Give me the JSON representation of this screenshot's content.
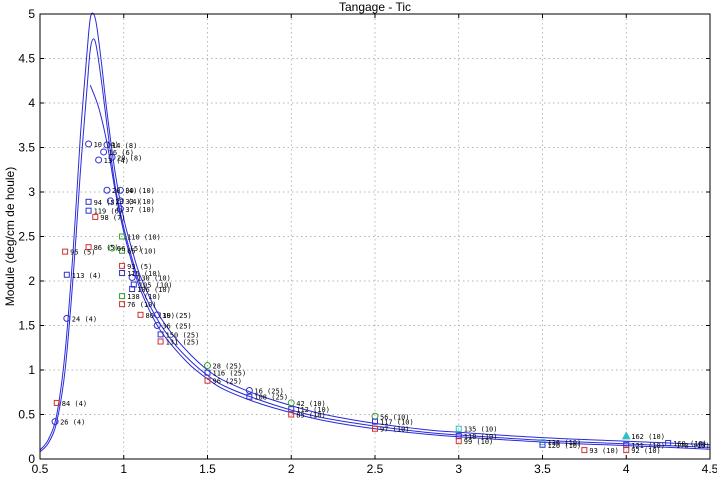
{
  "chart_data": {
    "type": "scatter",
    "title": "Tangage - Tic",
    "xlabel": "",
    "ylabel": "Module (deg/cm de houle)",
    "xlim": [
      0.5,
      4.5
    ],
    "ylim": [
      0,
      5
    ],
    "x_ticks": [
      "0.5",
      "1",
      "1.5",
      "2",
      "2.5",
      "3",
      "3.5",
      "4",
      "4.5"
    ],
    "y_ticks": [
      "0",
      "0.5",
      "1",
      "1.5",
      "2",
      "2.5",
      "3",
      "3.5",
      "4",
      "4.5",
      "5"
    ],
    "grid": true,
    "curves": [
      {
        "name": "",
        "color": "#2a2ad8",
        "x": [
          0.5,
          0.55,
          0.6,
          0.65,
          0.7,
          0.74,
          0.78,
          0.8,
          0.82,
          0.84,
          0.87,
          0.9,
          0.95,
          1.0,
          1.05,
          1.1,
          1.2,
          1.3,
          1.4,
          1.5,
          1.6,
          1.8,
          2.0,
          2.2,
          2.5,
          2.8,
          3.0,
          3.5,
          4.0,
          4.5
        ],
        "y": [
          0.1,
          0.22,
          0.5,
          1.2,
          2.4,
          3.6,
          4.55,
          4.95,
          5.0,
          4.85,
          4.4,
          3.9,
          3.2,
          2.7,
          2.35,
          2.05,
          1.65,
          1.38,
          1.17,
          1.0,
          0.88,
          0.72,
          0.6,
          0.5,
          0.4,
          0.33,
          0.3,
          0.24,
          0.2,
          0.16
        ]
      },
      {
        "name": "",
        "color": "#2a2ad8",
        "x": [
          0.5,
          0.55,
          0.6,
          0.65,
          0.7,
          0.74,
          0.78,
          0.8,
          0.82,
          0.84,
          0.87,
          0.9,
          0.95,
          1.0,
          1.05,
          1.1,
          1.2,
          1.3,
          1.4,
          1.5,
          1.6,
          1.8,
          2.0,
          2.2,
          2.5,
          2.8,
          3.0,
          3.5,
          4.0,
          4.5
        ],
        "y": [
          0.08,
          0.18,
          0.42,
          1.0,
          2.1,
          3.2,
          4.15,
          4.6,
          4.72,
          4.6,
          4.2,
          3.75,
          3.05,
          2.6,
          2.25,
          1.95,
          1.57,
          1.3,
          1.1,
          0.94,
          0.82,
          0.67,
          0.55,
          0.46,
          0.37,
          0.3,
          0.27,
          0.21,
          0.17,
          0.13
        ]
      },
      {
        "name": "",
        "color": "#2a2ad8",
        "x": [
          0.8,
          0.85,
          0.9,
          0.95,
          1.0,
          1.05,
          1.1,
          1.2,
          1.3,
          1.4,
          1.5,
          1.6,
          1.8,
          2.0,
          2.2,
          2.5,
          2.8,
          3.0,
          3.5,
          4.0,
          4.5
        ],
        "y": [
          4.2,
          3.95,
          3.55,
          3.0,
          2.55,
          2.2,
          1.9,
          1.5,
          1.25,
          1.05,
          0.9,
          0.78,
          0.63,
          0.52,
          0.43,
          0.34,
          0.28,
          0.25,
          0.19,
          0.15,
          0.11
        ]
      }
    ],
    "points": [
      {
        "x": 0.59,
        "y": 0.42,
        "m": "o",
        "c": "#3030d0",
        "label": "26 (4)"
      },
      {
        "x": 0.6,
        "y": 0.63,
        "m": "s",
        "c": "#d03030",
        "label": "84 (4)"
      },
      {
        "x": 0.66,
        "y": 1.58,
        "m": "o",
        "c": "#3030d0",
        "label": "24 (4)"
      },
      {
        "x": 0.66,
        "y": 2.07,
        "m": "s",
        "c": "#3030d0",
        "label": "113 (4)"
      },
      {
        "x": 0.65,
        "y": 2.33,
        "m": "s",
        "c": "#d03030",
        "label": "95 (5)"
      },
      {
        "x": 0.79,
        "y": 2.38,
        "m": "s",
        "c": "#d03030",
        "label": "86 (5)"
      },
      {
        "x": 0.79,
        "y": 2.79,
        "m": "s",
        "c": "#3030d0",
        "label": "119 (6)"
      },
      {
        "x": 0.79,
        "y": 2.89,
        "m": "s",
        "c": "#3030d0",
        "label": "94 (5)"
      },
      {
        "x": 0.79,
        "y": 3.54,
        "m": "o",
        "c": "#3030d0",
        "label": "10 (4)"
      },
      {
        "x": 0.83,
        "y": 2.72,
        "m": "s",
        "c": "#d03030",
        "label": "98 (7)"
      },
      {
        "x": 0.85,
        "y": 3.36,
        "m": "o",
        "c": "#3030d0",
        "label": "13 (4)"
      },
      {
        "x": 0.88,
        "y": 3.45,
        "m": "o",
        "c": "#3030d0",
        "label": "16 (6)"
      },
      {
        "x": 0.9,
        "y": 3.53,
        "m": "o",
        "c": "#3030d0",
        "label": "14 (8)"
      },
      {
        "x": 0.9,
        "y": 3.02,
        "m": "o",
        "c": "#3030d0",
        "label": "20 (4)"
      },
      {
        "x": 0.92,
        "y": 2.9,
        "m": "o",
        "c": "#3030d0",
        "label": "23 (4)"
      },
      {
        "x": 0.93,
        "y": 3.39,
        "m": "o",
        "c": "#3030d0",
        "label": "20 (8)"
      },
      {
        "x": 0.93,
        "y": 2.37,
        "m": "o",
        "c": "#30a030",
        "label": "66 (5)"
      },
      {
        "x": 0.98,
        "y": 3.02,
        "m": "o",
        "c": "#3030d0",
        "label": "30 (10)"
      },
      {
        "x": 0.98,
        "y": 2.9,
        "m": "o",
        "c": "#3030d0",
        "label": "33 (10)"
      },
      {
        "x": 0.98,
        "y": 2.81,
        "m": "o",
        "c": "#3030d0",
        "label": "37 (10)"
      },
      {
        "x": 0.99,
        "y": 2.5,
        "m": "s",
        "c": "#30a030",
        "label": "110 (10)"
      },
      {
        "x": 0.99,
        "y": 2.34,
        "m": "s",
        "c": "#30a030",
        "label": "65 (10)"
      },
      {
        "x": 0.99,
        "y": 2.17,
        "m": "s",
        "c": "#d03030",
        "label": "93 (5)"
      },
      {
        "x": 0.99,
        "y": 2.09,
        "m": "s",
        "c": "#3030d0",
        "label": "115 (10)"
      },
      {
        "x": 1.05,
        "y": 2.04,
        "m": "o",
        "c": "#3030d0",
        "label": "130 (10)"
      },
      {
        "x": 1.06,
        "y": 1.96,
        "m": "s",
        "c": "#3030d0",
        "label": "105 (10)"
      },
      {
        "x": 1.05,
        "y": 1.91,
        "m": "s",
        "c": "#3030d0",
        "label": "106 (10)"
      },
      {
        "x": 0.99,
        "y": 1.83,
        "m": "s",
        "c": "#30a030",
        "label": "138 (10)"
      },
      {
        "x": 0.99,
        "y": 1.74,
        "m": "s",
        "c": "#d03030",
        "label": "76 (10)"
      },
      {
        "x": 1.1,
        "y": 1.62,
        "m": "s",
        "c": "#d03030",
        "label": "80 (10)"
      },
      {
        "x": 1.2,
        "y": 1.62,
        "m": "o",
        "c": "#3030d0",
        "label": "39 (25)"
      },
      {
        "x": 1.2,
        "y": 1.5,
        "m": "o",
        "c": "#3030d0",
        "label": "36 (25)"
      },
      {
        "x": 1.22,
        "y": 1.4,
        "m": "s",
        "c": "#3030d0",
        "label": "150 (25)"
      },
      {
        "x": 1.22,
        "y": 1.32,
        "m": "s",
        "c": "#d03030",
        "label": "131 (25)"
      },
      {
        "x": 1.5,
        "y": 1.05,
        "m": "o",
        "c": "#30a030",
        "label": "28 (25)"
      },
      {
        "x": 1.5,
        "y": 0.97,
        "m": "s",
        "c": "#3030d0",
        "label": "116 (25)"
      },
      {
        "x": 1.5,
        "y": 0.88,
        "m": "s",
        "c": "#d03030",
        "label": "96 (25)"
      },
      {
        "x": 1.75,
        "y": 0.77,
        "m": "o",
        "c": "#3030d0",
        "label": "16 (25)"
      },
      {
        "x": 1.75,
        "y": 0.7,
        "m": "s",
        "c": "#3030d0",
        "label": "108 (25)"
      },
      {
        "x": 2.0,
        "y": 0.63,
        "m": "o",
        "c": "#30a030",
        "label": "42 (10)"
      },
      {
        "x": 2.0,
        "y": 0.56,
        "m": "s",
        "c": "#3030d0",
        "label": "112 (10)"
      },
      {
        "x": 2.0,
        "y": 0.5,
        "m": "s",
        "c": "#d03030",
        "label": "85 (10)"
      },
      {
        "x": 2.5,
        "y": 0.48,
        "m": "o",
        "c": "#30a030",
        "label": "56 (10)"
      },
      {
        "x": 2.5,
        "y": 0.42,
        "m": "s",
        "c": "#3030d0",
        "label": "117 (10)"
      },
      {
        "x": 2.5,
        "y": 0.34,
        "m": "s",
        "c": "#d03030",
        "label": "97 (10)"
      },
      {
        "x": 3.0,
        "y": 0.34,
        "m": "s",
        "c": "#30c0c0",
        "label": "135 (10)"
      },
      {
        "x": 3.0,
        "y": 0.26,
        "m": "s",
        "c": "#3030d0",
        "label": "118 (10)"
      },
      {
        "x": 3.0,
        "y": 0.2,
        "m": "s",
        "c": "#d03030",
        "label": "99 (10)"
      },
      {
        "x": 3.5,
        "y": 0.19,
        "m": "s",
        "c": "#30c0c0",
        "label": "136 (10)"
      },
      {
        "x": 3.5,
        "y": 0.16,
        "m": "s",
        "c": "#3030d0",
        "label": "120 (10)"
      },
      {
        "x": 3.75,
        "y": 0.1,
        "m": "s",
        "c": "#d03030",
        "label": "93 (10)"
      },
      {
        "x": 4.0,
        "y": 0.26,
        "m": "^",
        "c": "#30c0c0",
        "label": "162 (10)"
      },
      {
        "x": 4.0,
        "y": 0.16,
        "m": "s",
        "c": "#3030d0",
        "label": "121 (10)"
      },
      {
        "x": 4.0,
        "y": 0.1,
        "m": "s",
        "c": "#d03030",
        "label": "92 (10)"
      },
      {
        "x": 4.25,
        "y": 0.18,
        "m": "s",
        "c": "#3030d0",
        "label": "160 (10)"
      },
      {
        "x": 4.45,
        "y": 0.16,
        "m": "s",
        "c": "#3030d0",
        "label": "170 (10)"
      }
    ]
  }
}
